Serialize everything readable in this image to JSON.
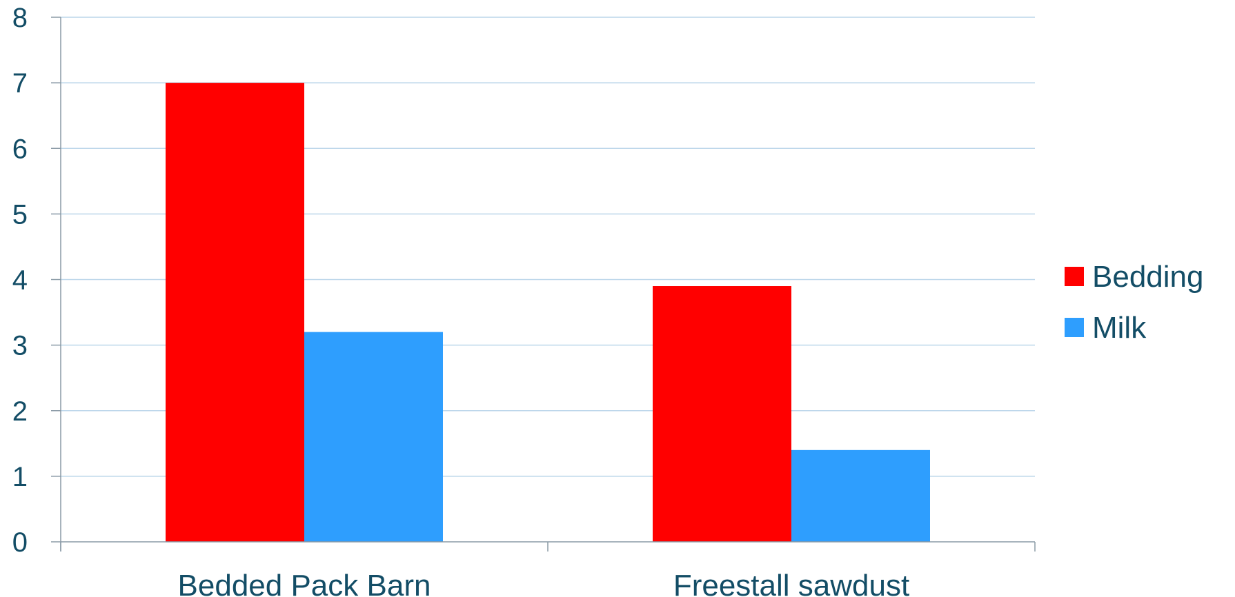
{
  "chart_data": {
    "type": "bar",
    "title": "",
    "xlabel": "",
    "ylabel": "",
    "categories": [
      "Bedded Pack Barn",
      "Freestall sawdust"
    ],
    "series": [
      {
        "name": "Bedding",
        "values": [
          7.0,
          3.9
        ],
        "color": "#ff0000"
      },
      {
        "name": "Milk",
        "values": [
          3.2,
          1.4
        ],
        "color": "#2e9efe"
      }
    ],
    "ylim": [
      0,
      8
    ],
    "yticks": [
      0,
      1,
      2,
      3,
      4,
      5,
      6,
      7,
      8
    ],
    "grid": true,
    "legend": "right",
    "colors": {
      "gridline": "#bcd6ea",
      "axis": "#8a9aa6",
      "text": "#134d66"
    }
  }
}
